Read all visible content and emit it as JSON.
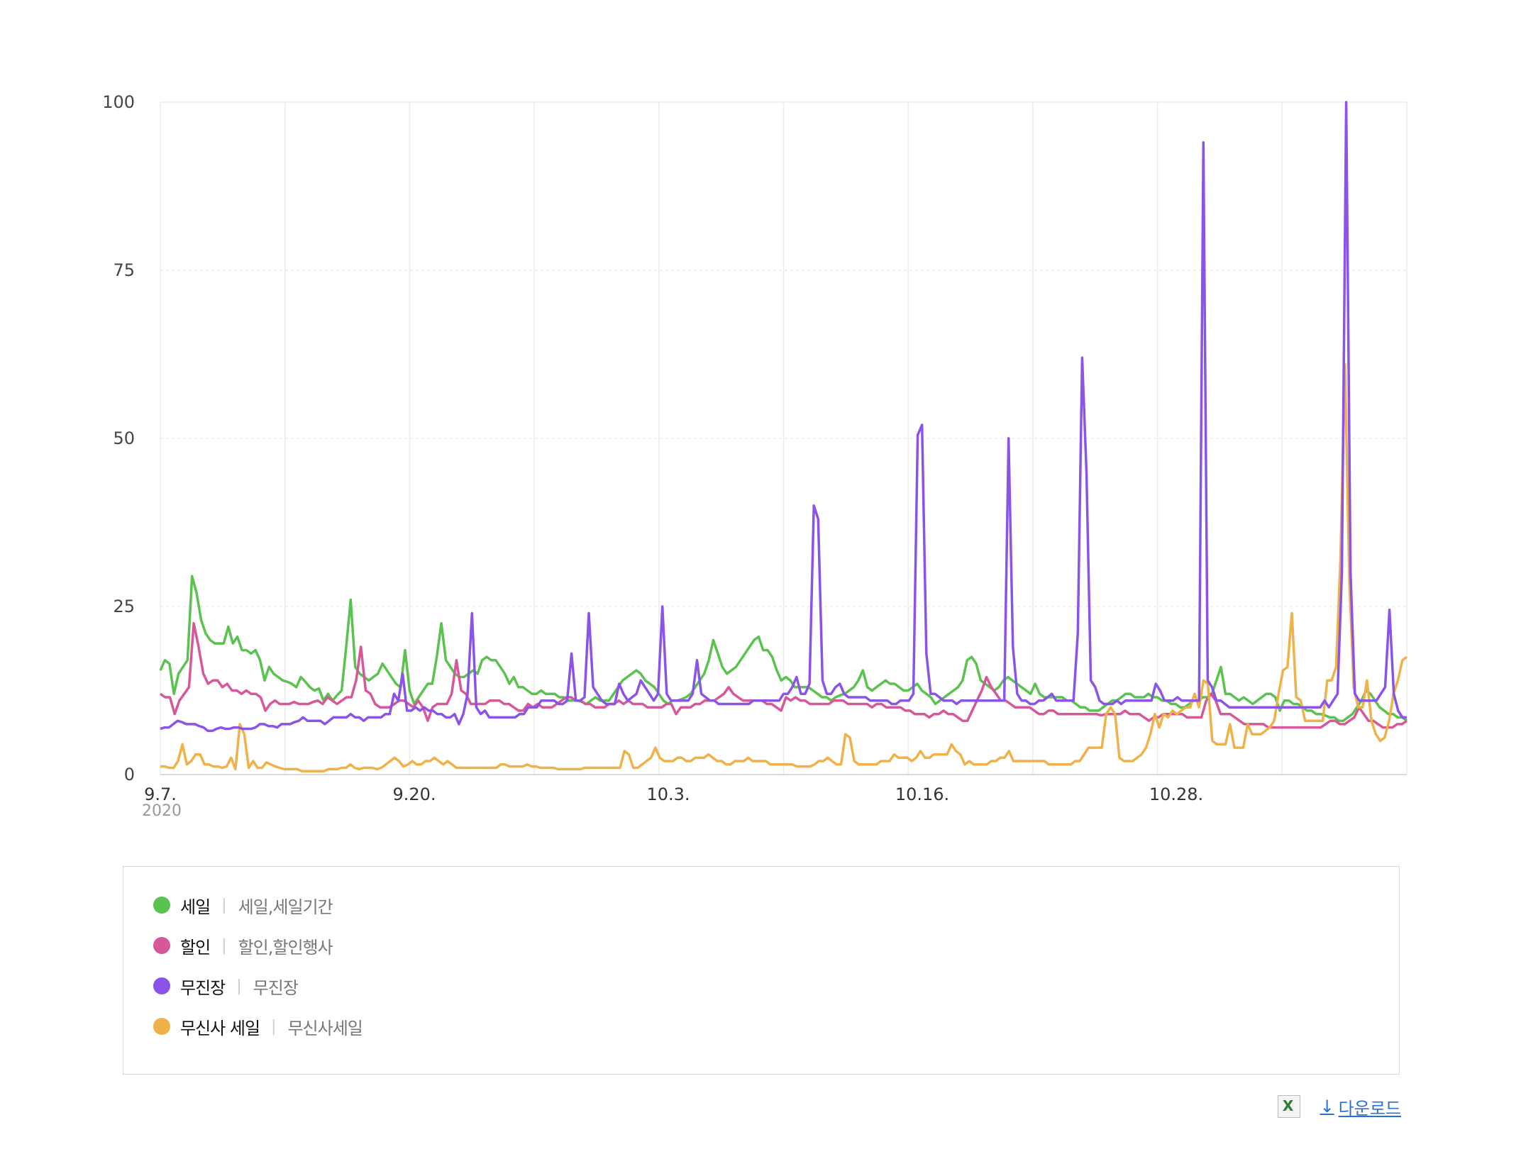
{
  "chart_data": {
    "type": "line",
    "x_axis": {
      "ticks": [
        "9.7.",
        "9.20.",
        "10.3.",
        "10.16.",
        "10.28."
      ],
      "year_label": "2020"
    },
    "ylim": [
      0,
      100
    ],
    "y_ticks": [
      "0",
      "25",
      "50",
      "75",
      "100"
    ],
    "grid": true,
    "legend_position": "bottom",
    "series": [
      {
        "name": "세일",
        "keywords": "세일,세일기간",
        "color": "#5ac24f",
        "values": [
          15.5,
          17,
          16.5,
          12,
          15,
          16,
          17,
          29.5,
          27,
          23,
          21,
          20,
          19.5,
          19.5,
          19.5,
          22,
          19.5,
          20.5,
          18.5,
          18.5,
          18,
          18.5,
          17,
          14,
          16,
          15,
          14.5,
          14,
          13.8,
          13.5,
          13,
          14.5,
          13.8,
          13,
          12.5,
          12.8,
          11,
          12,
          11,
          11.8,
          12.5,
          19,
          26,
          16,
          15,
          14.5,
          14,
          14.5,
          15,
          16.5,
          15.5,
          14.5,
          13.5,
          13,
          18.5,
          12.5,
          10.5,
          11.5,
          12.5,
          13.5,
          13.5,
          17.5,
          22.5,
          17,
          16,
          15,
          14.5,
          14.5,
          15,
          15.5,
          15,
          17,
          17.5,
          17,
          17,
          16,
          15,
          13.5,
          14.5,
          13,
          13,
          12.5,
          12,
          12,
          12.5,
          12,
          12,
          12,
          11.5,
          11.5,
          11,
          11,
          11,
          10.8,
          10.5,
          11,
          11.5,
          11,
          11,
          11,
          12,
          13,
          14,
          14.5,
          15,
          15.5,
          15,
          14,
          13.5,
          13,
          12,
          11,
          10.5,
          11,
          11,
          11.2,
          11.5,
          12,
          13,
          14,
          15,
          17,
          20,
          18,
          16,
          15,
          15.5,
          16,
          17,
          18,
          19,
          20,
          20.5,
          18.5,
          18.5,
          17.5,
          15.5,
          14,
          14.5,
          14,
          13,
          13,
          13,
          13,
          12.5,
          12,
          11.5,
          11.5,
          11,
          11.5,
          11.8,
          12,
          12.5,
          13,
          14,
          15.5,
          13,
          12.5,
          13,
          13.5,
          14,
          13.5,
          13.5,
          13,
          12.5,
          12.5,
          13,
          13.5,
          12.5,
          12,
          11.5,
          10.5,
          11,
          11.5,
          12,
          12.5,
          13,
          14,
          17,
          17.5,
          16.5,
          14,
          13.5,
          13,
          12.5,
          13,
          14,
          14.5,
          14,
          13.5,
          13,
          12.5,
          12,
          13.5,
          12,
          11.5,
          11.5,
          11.5,
          11.5,
          11.5,
          11,
          11,
          10.5,
          10,
          10,
          9.5,
          9.5,
          9.5,
          10,
          10.5,
          11,
          11,
          11.5,
          12,
          12,
          11.5,
          11.5,
          11.5,
          12,
          11.5,
          11.5,
          11,
          11,
          10.5,
          10.5,
          10,
          10,
          10.5,
          11,
          11,
          11.5,
          11.5,
          12,
          14,
          16,
          12,
          12,
          11.5,
          11,
          11.5,
          11,
          10.5,
          11,
          11.5,
          12,
          12,
          11.5,
          9.5,
          11,
          11,
          10.5,
          10.5,
          10,
          9.5,
          9.5,
          9,
          9,
          8.8,
          8.5,
          8.5,
          8,
          8,
          8.5,
          9,
          10,
          11,
          12.5,
          12,
          11,
          10,
          9.5,
          9,
          9,
          8.5,
          8.5,
          8
        ]
      },
      {
        "name": "할인",
        "keywords": "할인,할인행사",
        "color": "#d6589a",
        "values": [
          12,
          11.5,
          11.5,
          9,
          11,
          12,
          13,
          22.5,
          19,
          15,
          13.5,
          14,
          14,
          13,
          13.5,
          12.5,
          12.5,
          12,
          12.5,
          12,
          12,
          11.5,
          9.5,
          10.5,
          11,
          10.5,
          10.5,
          10.5,
          10.8,
          10.5,
          10.5,
          10.5,
          10.8,
          11,
          10.5,
          11.5,
          11,
          10.5,
          11,
          11.5,
          11.5,
          14,
          19,
          12.5,
          12,
          10.5,
          10,
          10,
          10,
          10.5,
          11,
          11,
          10.5,
          10,
          11,
          10,
          8,
          10,
          10.5,
          10.5,
          10.5,
          12,
          17,
          12.5,
          12,
          10.5,
          10.5,
          10.5,
          10.5,
          11,
          11,
          11,
          10.5,
          10.5,
          10,
          9.5,
          9.5,
          10.5,
          10,
          10.5,
          10,
          10,
          10,
          10.5,
          11,
          11.5,
          11.5,
          11,
          11,
          10.5,
          10.5,
          10,
          10,
          10,
          10.5,
          10.5,
          11,
          10.5,
          11,
          10.5,
          10.5,
          10.5,
          10,
          10,
          10,
          10,
          10.5,
          10.5,
          9,
          10,
          10,
          10,
          10.5,
          10.5,
          11,
          11,
          11,
          11.5,
          12,
          13,
          12,
          11.5,
          11,
          11,
          11,
          11,
          11,
          10.5,
          10.5,
          10,
          9.5,
          11.5,
          11,
          11.5,
          11,
          11,
          10.5,
          10.5,
          10.5,
          10.5,
          10.5,
          11,
          11,
          11,
          10.5,
          10.5,
          10.5,
          10.5,
          10.5,
          10,
          10.5,
          10.5,
          10,
          10,
          10,
          10,
          9.5,
          9.5,
          9,
          9,
          9,
          8.5,
          9,
          9,
          9.5,
          9,
          9,
          8.5,
          8,
          8,
          9.5,
          11,
          12.5,
          14.5,
          13,
          12,
          11,
          11,
          10.5,
          10,
          10,
          10,
          10,
          9.5,
          9,
          9,
          9.5,
          9.5,
          9,
          9,
          9,
          9,
          9,
          9,
          9,
          9,
          9,
          8.8,
          9,
          9,
          9,
          9,
          9.5,
          9,
          9,
          9,
          8.5,
          8,
          8.5,
          8.5,
          9,
          9,
          9,
          9,
          9,
          8.5,
          8.5,
          8.5,
          8.5,
          11,
          12,
          11,
          9,
          9,
          9,
          8.5,
          8,
          7.5,
          7.5,
          7.5,
          7.5,
          7.5,
          7,
          7,
          7,
          7,
          7,
          7,
          7,
          7,
          7,
          7,
          7,
          7,
          7.5,
          8,
          8,
          7.5,
          7.5,
          8,
          8.5,
          10,
          9,
          8,
          8,
          7.5,
          7,
          7,
          7,
          7.5,
          7.5,
          8
        ]
      },
      {
        "name": "무진장",
        "keywords": "무진장",
        "color": "#8a54e8",
        "values": [
          6.8,
          7,
          7,
          7.5,
          8,
          7.8,
          7.5,
          7.5,
          7.5,
          7.2,
          7,
          6.5,
          6.5,
          6.8,
          7,
          6.8,
          6.8,
          7,
          7,
          6.8,
          6.8,
          6.8,
          7,
          7.5,
          7.5,
          7.2,
          7.2,
          7,
          7.5,
          7.5,
          7.5,
          7.8,
          8,
          8.5,
          8,
          8,
          8,
          8,
          7.5,
          8,
          8.5,
          8.5,
          8.5,
          8.5,
          9,
          8.5,
          8.5,
          8,
          8.5,
          8.5,
          8.5,
          8.5,
          9,
          9,
          12,
          11,
          15,
          9.5,
          9.5,
          10,
          9.5,
          10,
          9.5,
          9.5,
          9,
          9,
          8.5,
          8.5,
          9,
          7.5,
          9,
          12,
          24,
          10,
          9,
          9.5,
          8.5,
          8.5,
          8.5,
          8.5,
          8.5,
          8.5,
          8.5,
          9,
          9,
          10,
          10,
          10,
          11,
          11,
          11,
          11,
          10.5,
          10.5,
          11,
          18,
          11,
          11,
          11.5,
          24,
          13,
          12,
          11,
          10.5,
          10.5,
          10.5,
          13.5,
          12,
          11,
          11.5,
          12,
          14,
          13,
          12,
          11,
          12,
          25,
          12,
          11,
          11,
          11,
          11,
          11,
          12,
          17,
          12,
          11.5,
          11,
          11,
          10.5,
          10.5,
          10.5,
          10.5,
          10.5,
          10.5,
          10.5,
          10.5,
          11,
          11,
          11,
          11,
          11,
          11,
          11,
          12,
          12,
          13,
          14.5,
          12,
          12,
          13.5,
          40,
          38,
          14,
          12,
          12,
          13,
          13.5,
          12,
          11.5,
          11.5,
          11.5,
          11.5,
          11.5,
          11,
          11,
          11,
          11,
          11,
          10.5,
          10.5,
          11,
          11,
          11,
          12,
          50.5,
          52,
          18,
          12,
          12,
          11.5,
          11,
          11,
          11,
          10.5,
          11,
          11,
          11,
          11,
          11,
          11,
          11,
          11,
          11,
          11,
          11,
          50,
          19,
          12,
          11,
          11,
          10.5,
          10.5,
          11,
          11,
          11.5,
          12,
          11,
          11,
          11,
          11,
          11,
          21,
          62,
          45,
          14,
          13,
          11,
          10.5,
          10.5,
          10.5,
          11,
          10.5,
          11,
          11,
          11,
          11,
          11,
          11,
          11,
          13.5,
          12.5,
          11,
          11,
          11,
          11.5,
          11,
          11,
          11,
          11,
          11,
          94,
          14,
          13,
          11,
          11,
          10.5,
          10,
          10,
          10,
          10,
          10,
          10,
          10,
          10,
          10,
          10,
          10,
          10,
          10,
          10,
          10,
          10,
          10,
          10,
          10,
          10,
          10,
          10,
          11,
          10,
          11,
          12,
          30,
          100,
          30,
          12,
          11,
          11,
          11,
          11,
          11,
          12,
          13,
          24.5,
          12,
          9.5,
          8.5,
          8.5
        ]
      },
      {
        "name": "무신사 세일",
        "keywords": "무신사세일",
        "color": "#efb24a",
        "values": [
          1.2,
          1.2,
          1,
          1,
          2,
          4.5,
          1.5,
          2,
          3,
          3,
          1.5,
          1.5,
          1.2,
          1.2,
          1,
          1.2,
          2.5,
          0.8,
          7.5,
          6,
          1,
          2,
          1,
          1,
          1.8,
          1.5,
          1.2,
          1,
          0.8,
          0.8,
          0.8,
          0.8,
          0.5,
          0.5,
          0.5,
          0.5,
          0.5,
          0.5,
          0.8,
          0.8,
          0.8,
          1,
          1,
          1.5,
          1,
          0.8,
          1,
          1,
          1,
          0.8,
          1,
          1.5,
          2,
          2.5,
          2,
          1.2,
          1.5,
          2,
          1.5,
          1.5,
          2,
          2,
          2.5,
          2,
          1.5,
          2,
          1.5,
          1,
          1,
          1,
          1,
          1,
          1,
          1,
          1,
          1,
          1,
          1.5,
          1.5,
          1.2,
          1.2,
          1.2,
          1.2,
          1.5,
          1.2,
          1.2,
          1,
          1,
          1,
          1,
          0.8,
          0.8,
          0.8,
          0.8,
          0.8,
          0.8,
          1,
          1,
          1,
          1,
          1,
          1,
          1,
          1,
          1,
          3.5,
          3,
          1,
          1,
          1.5,
          2,
          2.5,
          4,
          2.5,
          2,
          2,
          2,
          2.5,
          2.5,
          2,
          2,
          2.5,
          2.5,
          2.5,
          3,
          2.5,
          2,
          2,
          1.5,
          1.5,
          2,
          2,
          2,
          2.5,
          2,
          2,
          2,
          2,
          1.5,
          1.5,
          1.5,
          1.5,
          1.5,
          1.5,
          1.2,
          1.2,
          1.2,
          1.2,
          1.5,
          2,
          2,
          2.5,
          2,
          1.5,
          1.5,
          6,
          5.5,
          2,
          1.5,
          1.5,
          1.5,
          1.5,
          1.5,
          2,
          2,
          2,
          3,
          2.5,
          2.5,
          2.5,
          2,
          2.5,
          3.5,
          2.5,
          2.5,
          3,
          3,
          3,
          3,
          4.5,
          3.5,
          3,
          1.5,
          2,
          1.5,
          1.5,
          1.5,
          1.5,
          2,
          2,
          2.5,
          2.5,
          3.5,
          2,
          2,
          2,
          2,
          2,
          2,
          2,
          2,
          1.5,
          1.5,
          1.5,
          1.5,
          1.5,
          1.5,
          2,
          2,
          3,
          4,
          4,
          4,
          4,
          9,
          10,
          9,
          2.5,
          2,
          2,
          2,
          2.5,
          3,
          4,
          6,
          9,
          7,
          9,
          8.5,
          9.5,
          9,
          9.5,
          10,
          10,
          12,
          10,
          14,
          13.5,
          5,
          4.5,
          4.5,
          4.5,
          7.5,
          4,
          4,
          4,
          7.5,
          6,
          6,
          6,
          6.5,
          7,
          8,
          12,
          15.5,
          16,
          24,
          11.5,
          11,
          8,
          8,
          8,
          8,
          8,
          14,
          14,
          16,
          32,
          61,
          29,
          13,
          10,
          10,
          14,
          8,
          6,
          5,
          5.5,
          8,
          12,
          14,
          17,
          17.5
        ]
      }
    ]
  },
  "footer": {
    "excel_icon": "excel-file-icon",
    "download_icon": "download-arrow-icon",
    "download_label": "다운로드"
  }
}
